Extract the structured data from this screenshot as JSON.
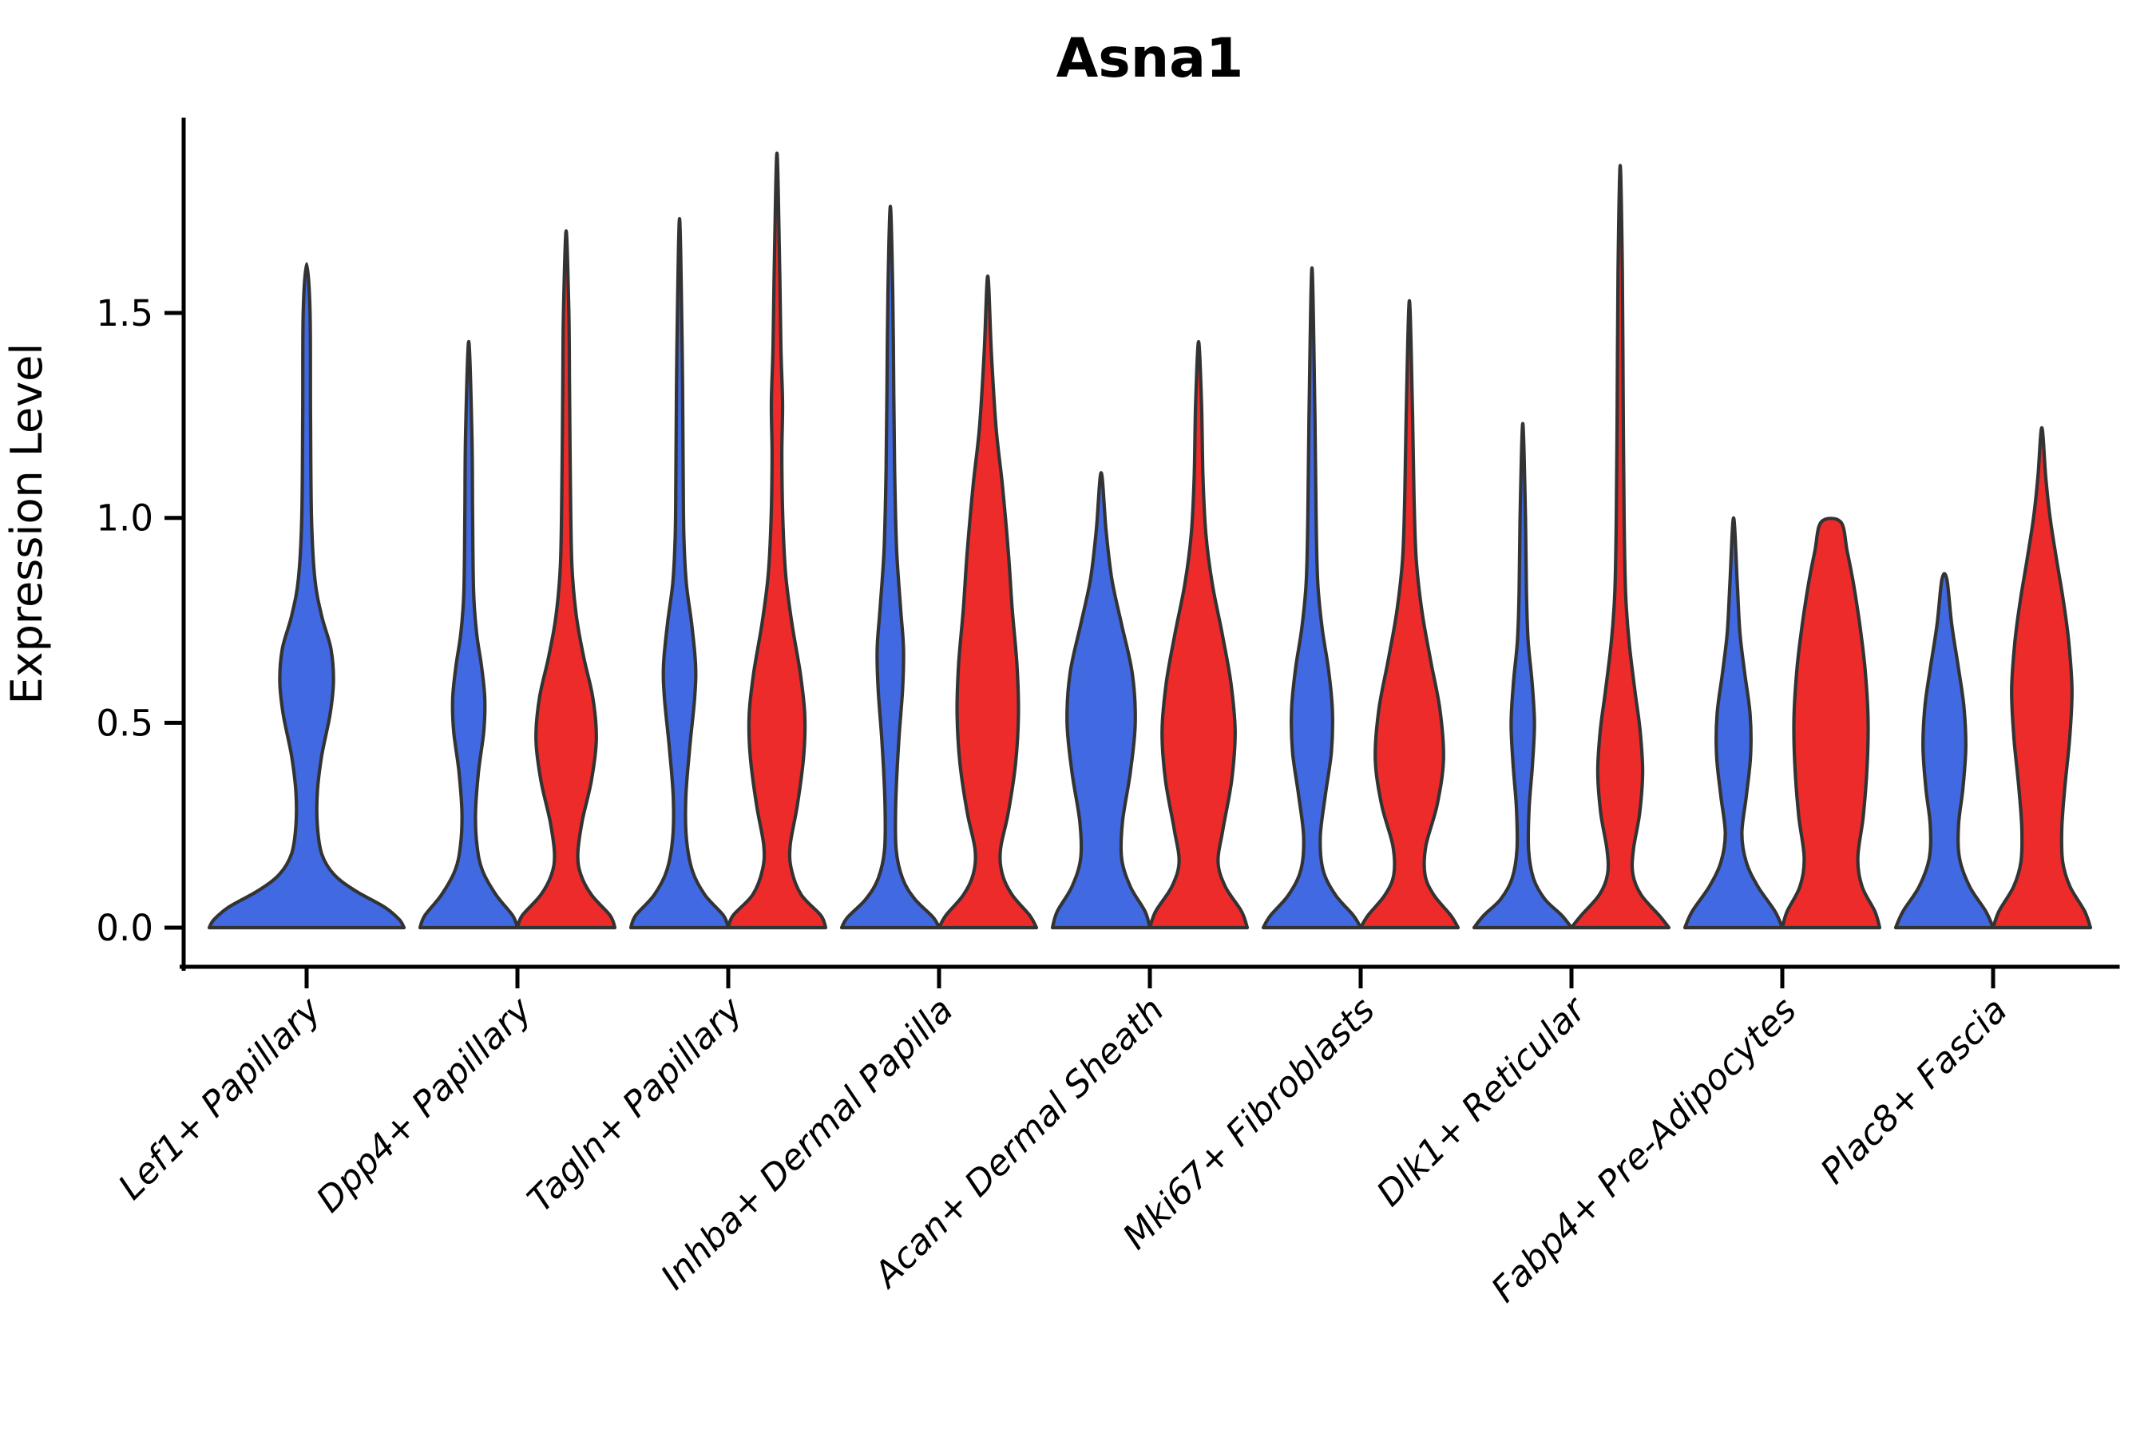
{
  "figure_title": "Asna1",
  "chart_data": {
    "type": "violin",
    "title": "Asna1",
    "xlabel": "",
    "ylabel": "Expression Level",
    "ylim": [
      0,
      1.97
    ],
    "grid": false,
    "legend_position": "none",
    "yticks": [
      0,
      0.5,
      1.0,
      1.5
    ],
    "ytick_labels": [
      "0.0",
      "0.5",
      "1.0",
      "1.5"
    ],
    "categories": [
      "Lef1+ Papillary",
      "Dpp4+ Papillary",
      "Tagln+ Papillary",
      "Inhba+ Dermal Papilla",
      "Acan+ Dermal Sheath",
      "Mki67+ Fibroblasts",
      "Dlk1+ Reticular",
      "Fabp4+ Pre-Adipocytes",
      "Plac8+ Fascia"
    ],
    "colors": {
      "blue_fill": "#4169E1",
      "red_fill": "#EE2B2B",
      "edge": "#333333",
      "axis": "#000000",
      "text": "#000000",
      "background": "#ffffff"
    },
    "series": [
      {
        "name": "blue-split",
        "color_key": "blue_fill"
      },
      {
        "name": "red-split",
        "color_key": "red_fill"
      }
    ],
    "violins": [
      {
        "category_index": 0,
        "category": "Lef1+ Papillary",
        "side": "center",
        "color_key": "blue_fill",
        "max_value": 1.62,
        "profile": [
          [
            0,
            1
          ],
          [
            0.02,
            0.95
          ],
          [
            0.05,
            0.8
          ],
          [
            0.09,
            0.5
          ],
          [
            0.13,
            0.28
          ],
          [
            0.18,
            0.155
          ],
          [
            0.25,
            0.11
          ],
          [
            0.33,
            0.11
          ],
          [
            0.42,
            0.155
          ],
          [
            0.52,
            0.24
          ],
          [
            0.6,
            0.275
          ],
          [
            0.68,
            0.25
          ],
          [
            0.76,
            0.155
          ],
          [
            0.85,
            0.085
          ],
          [
            1.0,
            0.05
          ],
          [
            1.25,
            0.04
          ],
          [
            1.5,
            0.035
          ],
          [
            1.62,
            0
          ]
        ]
      },
      {
        "category_index": 1,
        "category": "Dpp4+ Papillary",
        "side": "left",
        "color_key": "blue_fill",
        "max_value": 1.43,
        "profile": [
          [
            0,
            1
          ],
          [
            0.03,
            0.9
          ],
          [
            0.08,
            0.56
          ],
          [
            0.14,
            0.28
          ],
          [
            0.2,
            0.17
          ],
          [
            0.28,
            0.14
          ],
          [
            0.38,
            0.2
          ],
          [
            0.48,
            0.31
          ],
          [
            0.56,
            0.33
          ],
          [
            0.64,
            0.26
          ],
          [
            0.72,
            0.16
          ],
          [
            0.82,
            0.1
          ],
          [
            1.0,
            0.08
          ],
          [
            1.2,
            0.065
          ],
          [
            1.43,
            0
          ]
        ]
      },
      {
        "category_index": 1,
        "category": "Dpp4+ Papillary",
        "side": "right",
        "color_key": "red_fill",
        "max_value": 1.7,
        "profile": [
          [
            0,
            1
          ],
          [
            0.03,
            0.9
          ],
          [
            0.08,
            0.52
          ],
          [
            0.13,
            0.3
          ],
          [
            0.18,
            0.24
          ],
          [
            0.26,
            0.33
          ],
          [
            0.36,
            0.52
          ],
          [
            0.46,
            0.62
          ],
          [
            0.56,
            0.55
          ],
          [
            0.66,
            0.36
          ],
          [
            0.76,
            0.21
          ],
          [
            0.88,
            0.12
          ],
          [
            1.05,
            0.09
          ],
          [
            1.3,
            0.07
          ],
          [
            1.5,
            0.055
          ],
          [
            1.7,
            0
          ]
        ]
      },
      {
        "category_index": 2,
        "category": "Tagln+ Papillary",
        "side": "left",
        "color_key": "blue_fill",
        "max_value": 1.73,
        "profile": [
          [
            0,
            1
          ],
          [
            0.03,
            0.9
          ],
          [
            0.08,
            0.52
          ],
          [
            0.14,
            0.26
          ],
          [
            0.22,
            0.14
          ],
          [
            0.32,
            0.13
          ],
          [
            0.44,
            0.21
          ],
          [
            0.56,
            0.31
          ],
          [
            0.64,
            0.33
          ],
          [
            0.74,
            0.25
          ],
          [
            0.84,
            0.14
          ],
          [
            0.95,
            0.09
          ],
          [
            1.1,
            0.075
          ],
          [
            1.4,
            0.055
          ],
          [
            1.73,
            0
          ]
        ]
      },
      {
        "category_index": 2,
        "category": "Tagln+ Papillary",
        "side": "right",
        "color_key": "red_fill",
        "max_value": 1.89,
        "profile": [
          [
            0,
            1
          ],
          [
            0.03,
            0.9
          ],
          [
            0.08,
            0.5
          ],
          [
            0.14,
            0.3
          ],
          [
            0.2,
            0.27
          ],
          [
            0.3,
            0.42
          ],
          [
            0.42,
            0.55
          ],
          [
            0.52,
            0.57
          ],
          [
            0.62,
            0.48
          ],
          [
            0.74,
            0.31
          ],
          [
            0.86,
            0.18
          ],
          [
            1.0,
            0.12
          ],
          [
            1.15,
            0.1
          ],
          [
            1.28,
            0.115
          ],
          [
            1.42,
            0.08
          ],
          [
            1.65,
            0.05
          ],
          [
            1.89,
            0
          ]
        ]
      },
      {
        "category_index": 3,
        "category": "Inhba+ Dermal Papilla",
        "side": "left",
        "color_key": "blue_fill",
        "max_value": 1.76,
        "profile": [
          [
            0,
            1
          ],
          [
            0.025,
            0.88
          ],
          [
            0.07,
            0.5
          ],
          [
            0.12,
            0.25
          ],
          [
            0.19,
            0.12
          ],
          [
            0.3,
            0.11
          ],
          [
            0.45,
            0.17
          ],
          [
            0.58,
            0.25
          ],
          [
            0.68,
            0.27
          ],
          [
            0.78,
            0.21
          ],
          [
            0.92,
            0.13
          ],
          [
            1.1,
            0.09
          ],
          [
            1.3,
            0.07
          ],
          [
            1.55,
            0.05
          ],
          [
            1.76,
            0
          ]
        ]
      },
      {
        "category_index": 3,
        "category": "Inhba+ Dermal Papilla",
        "side": "right",
        "color_key": "red_fill",
        "max_value": 1.59,
        "profile": [
          [
            0,
            1
          ],
          [
            0.03,
            0.86
          ],
          [
            0.08,
            0.5
          ],
          [
            0.13,
            0.3
          ],
          [
            0.19,
            0.26
          ],
          [
            0.28,
            0.42
          ],
          [
            0.4,
            0.57
          ],
          [
            0.52,
            0.63
          ],
          [
            0.64,
            0.6
          ],
          [
            0.78,
            0.5
          ],
          [
            0.92,
            0.42
          ],
          [
            1.08,
            0.3
          ],
          [
            1.22,
            0.17
          ],
          [
            1.4,
            0.075
          ],
          [
            1.59,
            0
          ]
        ]
      },
      {
        "category_index": 4,
        "category": "Acan+ Dermal Sheath",
        "side": "left",
        "color_key": "blue_fill",
        "max_value": 1.11,
        "profile": [
          [
            0,
            1
          ],
          [
            0.04,
            0.9
          ],
          [
            0.1,
            0.6
          ],
          [
            0.17,
            0.42
          ],
          [
            0.26,
            0.44
          ],
          [
            0.38,
            0.6
          ],
          [
            0.5,
            0.7
          ],
          [
            0.62,
            0.64
          ],
          [
            0.74,
            0.42
          ],
          [
            0.85,
            0.22
          ],
          [
            0.97,
            0.1
          ],
          [
            1.11,
            0
          ]
        ]
      },
      {
        "category_index": 4,
        "category": "Acan+ Dermal Sheath",
        "side": "right",
        "color_key": "red_fill",
        "max_value": 1.43,
        "profile": [
          [
            0,
            1
          ],
          [
            0.04,
            0.88
          ],
          [
            0.1,
            0.55
          ],
          [
            0.16,
            0.4
          ],
          [
            0.24,
            0.5
          ],
          [
            0.36,
            0.68
          ],
          [
            0.48,
            0.75
          ],
          [
            0.6,
            0.66
          ],
          [
            0.72,
            0.48
          ],
          [
            0.84,
            0.28
          ],
          [
            0.96,
            0.15
          ],
          [
            1.1,
            0.09
          ],
          [
            1.28,
            0.06
          ],
          [
            1.43,
            0
          ]
        ]
      },
      {
        "category_index": 5,
        "category": "Mki67+ Fibroblasts",
        "side": "left",
        "color_key": "blue_fill",
        "max_value": 1.61,
        "profile": [
          [
            0,
            1
          ],
          [
            0.03,
            0.85
          ],
          [
            0.08,
            0.48
          ],
          [
            0.14,
            0.23
          ],
          [
            0.22,
            0.17
          ],
          [
            0.32,
            0.27
          ],
          [
            0.43,
            0.4
          ],
          [
            0.53,
            0.42
          ],
          [
            0.63,
            0.34
          ],
          [
            0.73,
            0.21
          ],
          [
            0.84,
            0.12
          ],
          [
            1.0,
            0.085
          ],
          [
            1.25,
            0.06
          ],
          [
            1.61,
            0
          ]
        ]
      },
      {
        "category_index": 5,
        "category": "Mki67+ Fibroblasts",
        "side": "right",
        "color_key": "red_fill",
        "max_value": 1.53,
        "profile": [
          [
            0,
            1
          ],
          [
            0.03,
            0.85
          ],
          [
            0.08,
            0.5
          ],
          [
            0.13,
            0.32
          ],
          [
            0.2,
            0.34
          ],
          [
            0.3,
            0.57
          ],
          [
            0.41,
            0.7
          ],
          [
            0.53,
            0.63
          ],
          [
            0.65,
            0.44
          ],
          [
            0.77,
            0.26
          ],
          [
            0.9,
            0.14
          ],
          [
            1.05,
            0.095
          ],
          [
            1.25,
            0.065
          ],
          [
            1.53,
            0
          ]
        ]
      },
      {
        "category_index": 6,
        "category": "Dlk1+ Reticular",
        "side": "left",
        "color_key": "blue_fill",
        "max_value": 1.23,
        "profile": [
          [
            0,
            1
          ],
          [
            0.03,
            0.8
          ],
          [
            0.07,
            0.45
          ],
          [
            0.12,
            0.22
          ],
          [
            0.19,
            0.12
          ],
          [
            0.29,
            0.13
          ],
          [
            0.4,
            0.2
          ],
          [
            0.5,
            0.24
          ],
          [
            0.6,
            0.19
          ],
          [
            0.7,
            0.11
          ],
          [
            0.82,
            0.075
          ],
          [
            1.0,
            0.055
          ],
          [
            1.23,
            0
          ]
        ]
      },
      {
        "category_index": 6,
        "category": "Dlk1+ Reticular",
        "side": "right",
        "color_key": "red_fill",
        "max_value": 1.86,
        "profile": [
          [
            0,
            1
          ],
          [
            0.03,
            0.8
          ],
          [
            0.08,
            0.43
          ],
          [
            0.13,
            0.26
          ],
          [
            0.19,
            0.27
          ],
          [
            0.28,
            0.4
          ],
          [
            0.38,
            0.46
          ],
          [
            0.48,
            0.41
          ],
          [
            0.58,
            0.3
          ],
          [
            0.7,
            0.18
          ],
          [
            0.82,
            0.11
          ],
          [
            1.0,
            0.08
          ],
          [
            1.3,
            0.06
          ],
          [
            1.6,
            0.045
          ],
          [
            1.86,
            0
          ]
        ]
      },
      {
        "category_index": 7,
        "category": "Fabp4+ Pre-Adipocytes",
        "side": "left",
        "color_key": "blue_fill",
        "max_value": 1.0,
        "profile": [
          [
            0,
            1
          ],
          [
            0.04,
            0.85
          ],
          [
            0.1,
            0.5
          ],
          [
            0.16,
            0.26
          ],
          [
            0.23,
            0.17
          ],
          [
            0.32,
            0.26
          ],
          [
            0.42,
            0.35
          ],
          [
            0.52,
            0.34
          ],
          [
            0.62,
            0.23
          ],
          [
            0.72,
            0.13
          ],
          [
            0.84,
            0.075
          ],
          [
            1.0,
            0
          ]
        ]
      },
      {
        "category_index": 7,
        "category": "Fabp4+ Pre-Adipocytes",
        "side": "right",
        "color_key": "red_fill",
        "max_value": 0.99,
        "profile": [
          [
            0,
            1
          ],
          [
            0.04,
            0.9
          ],
          [
            0.1,
            0.64
          ],
          [
            0.17,
            0.55
          ],
          [
            0.27,
            0.66
          ],
          [
            0.39,
            0.74
          ],
          [
            0.51,
            0.76
          ],
          [
            0.63,
            0.7
          ],
          [
            0.74,
            0.59
          ],
          [
            0.84,
            0.46
          ],
          [
            0.92,
            0.33
          ],
          [
            0.99,
            0.2
          ]
        ]
      },
      {
        "category_index": 8,
        "category": "Plac8+ Fascia",
        "side": "left",
        "color_key": "blue_fill",
        "max_value": 0.85,
        "profile": [
          [
            0,
            1
          ],
          [
            0.04,
            0.85
          ],
          [
            0.1,
            0.52
          ],
          [
            0.17,
            0.31
          ],
          [
            0.25,
            0.29
          ],
          [
            0.34,
            0.38
          ],
          [
            0.44,
            0.44
          ],
          [
            0.54,
            0.4
          ],
          [
            0.64,
            0.28
          ],
          [
            0.74,
            0.15
          ],
          [
            0.85,
            0.05
          ]
        ]
      },
      {
        "category_index": 8,
        "category": "Plac8+ Fascia",
        "side": "right",
        "color_key": "red_fill",
        "max_value": 1.22,
        "profile": [
          [
            0,
            1
          ],
          [
            0.04,
            0.88
          ],
          [
            0.1,
            0.58
          ],
          [
            0.16,
            0.43
          ],
          [
            0.24,
            0.41
          ],
          [
            0.34,
            0.47
          ],
          [
            0.46,
            0.57
          ],
          [
            0.58,
            0.62
          ],
          [
            0.7,
            0.55
          ],
          [
            0.8,
            0.44
          ],
          [
            0.9,
            0.3
          ],
          [
            1.0,
            0.17
          ],
          [
            1.1,
            0.08
          ],
          [
            1.22,
            0
          ]
        ]
      }
    ]
  }
}
